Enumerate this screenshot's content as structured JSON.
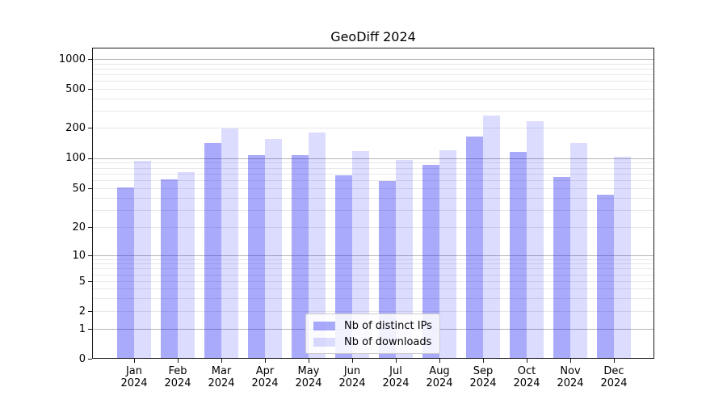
{
  "chart_data": {
    "type": "bar",
    "title": "GeoDiff 2024",
    "months": [
      "Jan",
      "Feb",
      "Mar",
      "Apr",
      "May",
      "Jun",
      "Jul",
      "Aug",
      "Sep",
      "Oct",
      "Nov",
      "Dec"
    ],
    "year": "2024",
    "series": [
      {
        "name": "Nb of distinct IPs",
        "color": "rgba(20,20,245,0.36)",
        "values": [
          51,
          61,
          140,
          106,
          107,
          67,
          59,
          85,
          162,
          115,
          65,
          43
        ]
      },
      {
        "name": "Nb of downloads",
        "color": "rgba(20,20,245,0.15)",
        "values": [
          93,
          72,
          196,
          155,
          180,
          117,
          96,
          120,
          267,
          233,
          142,
          102
        ]
      }
    ],
    "y_ticks": [
      0,
      1,
      2,
      5,
      10,
      20,
      50,
      100,
      200,
      500,
      1000
    ],
    "yscale": "symlog",
    "ylim": [
      0,
      1000
    ],
    "grid": true,
    "legend_position": "lower center"
  }
}
